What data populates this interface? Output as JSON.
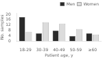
{
  "chart_data": {
    "type": "bar",
    "categories": [
      "18-29",
      "30-39",
      "40-49",
      "50-59",
      "≥60"
    ],
    "series": [
      {
        "name": "Men",
        "color": "#2a2a2a",
        "values": [
          18,
          6,
          8,
          4,
          6
        ]
      },
      {
        "name": "Women",
        "color": "#dcdcdc",
        "values": [
          7,
          14,
          13,
          9,
          5
        ]
      }
    ],
    "xlabel": "Patient age, y",
    "ylabel": "No. samples",
    "ylim": [
      0,
      21
    ],
    "yticks": [
      0,
      4,
      8,
      12,
      16,
      20
    ],
    "legend": "upper right",
    "grid": false
  }
}
